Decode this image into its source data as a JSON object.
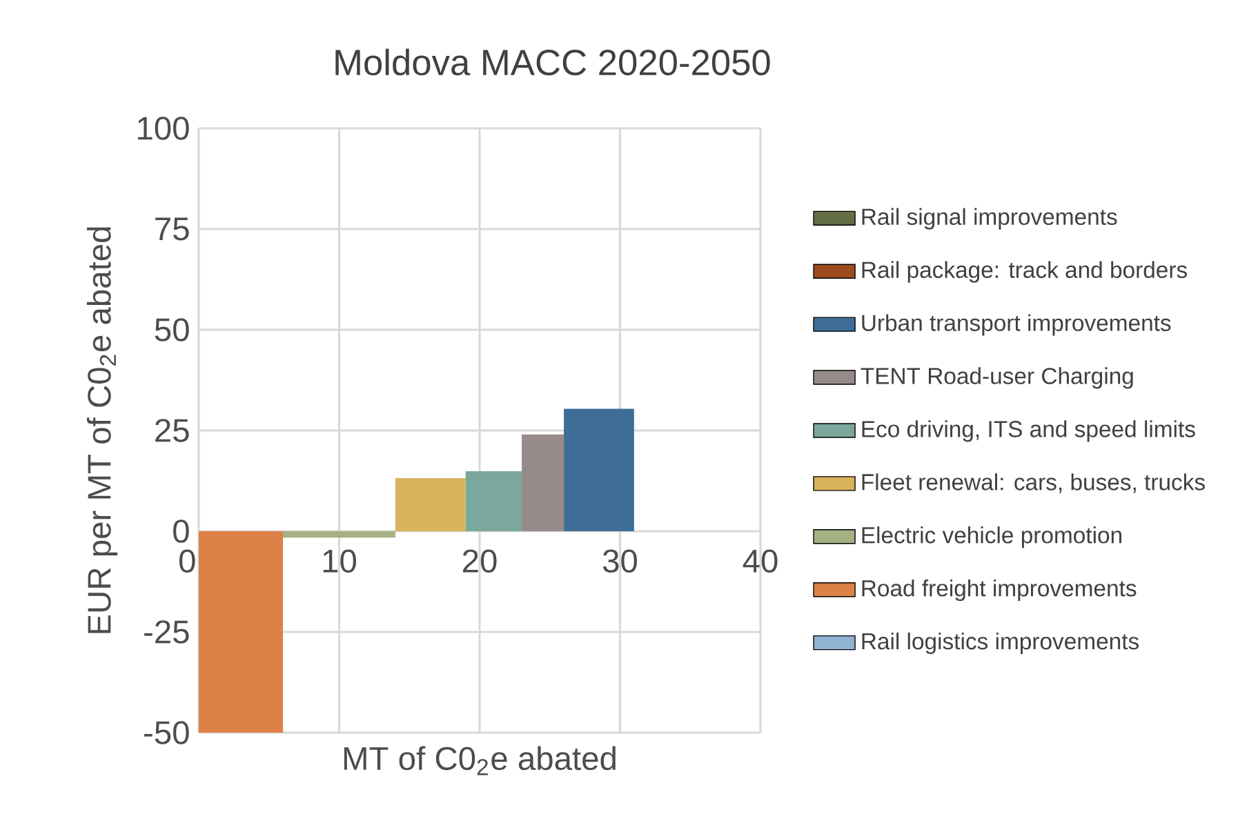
{
  "chart_data": {
    "type": "area",
    "title": "Moldova MACC 2020-2050",
    "xlabel": "MT of C0$_{2}$e abated",
    "ylabel": "EUR per MT of C0$_{2}$e abated",
    "xlim": [
      0,
      40
    ],
    "xticks": [
      0,
      10,
      20,
      30,
      40
    ],
    "ylim": [
      -50,
      100
    ],
    "yticks": [
      -50,
      -25,
      0,
      25,
      50,
      75,
      100
    ],
    "grid": true,
    "legend": "right",
    "series": [
      {
        "name": "Rail signal improvements",
        "color": "#636e46"
      },
      {
        "name": "Rail package: track and borders",
        "color": "#9e4a1c"
      },
      {
        "name": "Urban transport improvements",
        "color": "#3e6e97",
        "x": [
          26,
          26,
          31,
          31
        ],
        "values": [
          0,
          30.4,
          30.4,
          0
        ]
      },
      {
        "name": "TENT Road-user Charging",
        "color": "#968b89",
        "x": [
          23,
          23,
          26,
          26
        ],
        "values": [
          0,
          24,
          24,
          0
        ]
      },
      {
        "name": "Eco driving, ITS and speed limits",
        "color": "#7ba89c",
        "x": [
          19,
          19,
          23,
          23
        ],
        "values": [
          0,
          14.9,
          14.9,
          0
        ]
      },
      {
        "name": "Fleet renewal: cars, buses, trucks",
        "color": "#d8b25c",
        "x": [
          14,
          14,
          19,
          19
        ],
        "values": [
          0,
          13.2,
          13.2,
          0
        ]
      },
      {
        "name": "Electric vehicle promotion",
        "color": "#a5b083",
        "x": [
          6,
          6,
          14,
          14
        ],
        "values": [
          0,
          -1.6,
          -1.6,
          0
        ]
      },
      {
        "name": "Road freight improvements",
        "color": "#dd8148",
        "x": [
          0,
          0,
          6,
          6
        ],
        "values": [
          0,
          -50,
          -50,
          0
        ]
      },
      {
        "name": "Rail logistics improvements",
        "color": "#91b3d3"
      }
    ]
  }
}
